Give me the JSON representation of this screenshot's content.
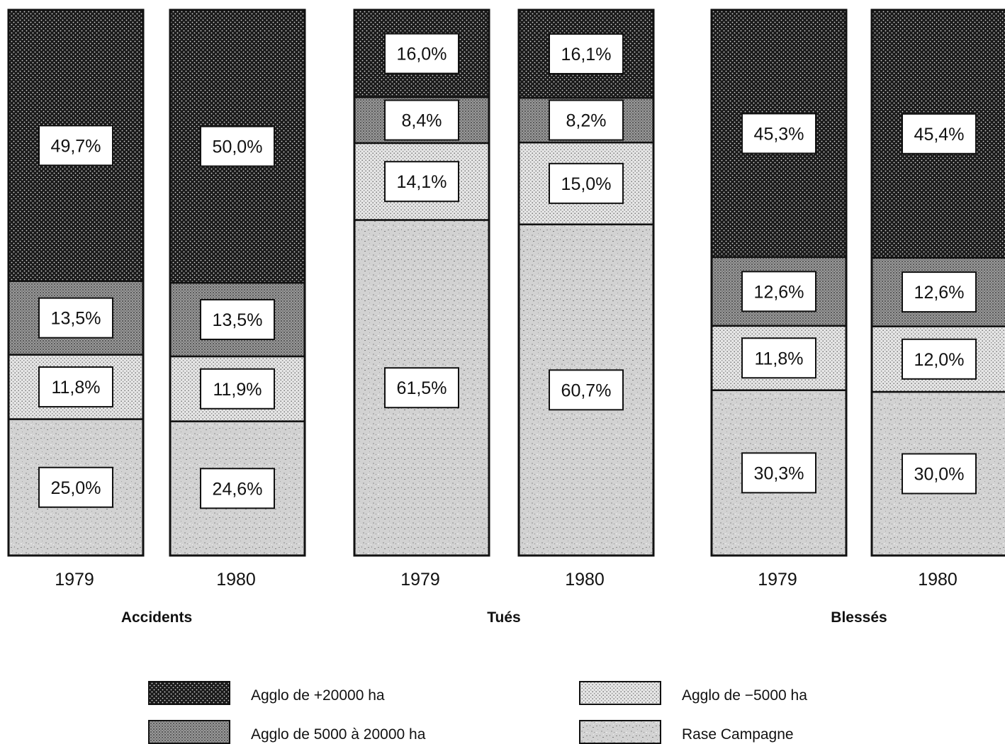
{
  "chart_data": {
    "type": "bar",
    "stacked": true,
    "percent_scale": [
      0,
      100
    ],
    "groups": [
      {
        "title": "Accidents",
        "bars": [
          {
            "year": "1979",
            "segments": [
              {
                "key": "rase",
                "value": 25.0,
                "label": "25,0%"
              },
              {
                "key": "m5000",
                "value": 11.8,
                "label": "11,8%"
              },
              {
                "key": "a5000_20000",
                "value": 13.5,
                "label": "13,5%"
              },
              {
                "key": "p20000",
                "value": 49.7,
                "label": "49,7%"
              }
            ]
          },
          {
            "year": "1980",
            "segments": [
              {
                "key": "rase",
                "value": 24.6,
                "label": "24,6%"
              },
              {
                "key": "m5000",
                "value": 11.9,
                "label": "11,9%"
              },
              {
                "key": "a5000_20000",
                "value": 13.5,
                "label": "13,5%"
              },
              {
                "key": "p20000",
                "value": 50.0,
                "label": "50,0%"
              }
            ]
          }
        ]
      },
      {
        "title": "Tués",
        "bars": [
          {
            "year": "1979",
            "segments": [
              {
                "key": "rase",
                "value": 61.5,
                "label": "61,5%"
              },
              {
                "key": "m5000",
                "value": 14.1,
                "label": "14,1%"
              },
              {
                "key": "a5000_20000",
                "value": 8.4,
                "label": "8,4%"
              },
              {
                "key": "p20000",
                "value": 16.0,
                "label": "16,0%"
              }
            ]
          },
          {
            "year": "1980",
            "segments": [
              {
                "key": "rase",
                "value": 60.7,
                "label": "60,7%"
              },
              {
                "key": "m5000",
                "value": 15.0,
                "label": "15,0%"
              },
              {
                "key": "a5000_20000",
                "value": 8.2,
                "label": "8,2%"
              },
              {
                "key": "p20000",
                "value": 16.1,
                "label": "16,1%"
              }
            ]
          }
        ]
      },
      {
        "title": "Blessés",
        "bars": [
          {
            "year": "1979",
            "segments": [
              {
                "key": "rase",
                "value": 30.3,
                "label": "30,3%"
              },
              {
                "key": "m5000",
                "value": 11.8,
                "label": "11,8%"
              },
              {
                "key": "a5000_20000",
                "value": 12.6,
                "label": "12,6%"
              },
              {
                "key": "p20000",
                "value": 45.3,
                "label": "45,3%"
              }
            ]
          },
          {
            "year": "1980",
            "segments": [
              {
                "key": "rase",
                "value": 30.0,
                "label": "30,0%"
              },
              {
                "key": "m5000",
                "value": 12.0,
                "label": "12,0%"
              },
              {
                "key": "a5000_20000",
                "value": 12.6,
                "label": "12,6%"
              },
              {
                "key": "p20000",
                "value": 45.4,
                "label": "45,4%"
              }
            ]
          }
        ]
      }
    ],
    "legend": [
      {
        "key": "p20000",
        "label": "Agglo de +20000 ha",
        "pattern": "dense-dots"
      },
      {
        "key": "a5000_20000",
        "label": "Agglo de 5000 à 20000 ha",
        "pattern": "fine-grey-grid"
      },
      {
        "key": "m5000",
        "label": "Agglo de −5000 ha",
        "pattern": "light-dots"
      },
      {
        "key": "rase",
        "label": "Rase Campagne",
        "pattern": "speckle"
      }
    ],
    "legend_placement": "bottom",
    "grid": false
  }
}
